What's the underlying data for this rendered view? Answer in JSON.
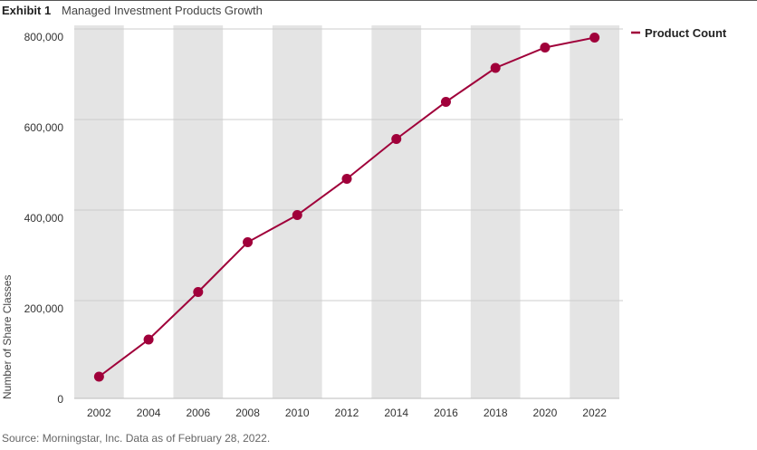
{
  "header": {
    "exhibit": "Exhibit 1",
    "subtitle": "Managed Investment Products Growth"
  },
  "footer": {
    "source": "Source: Morningstar, Inc. Data as of February 28, 2022."
  },
  "colors": {
    "series": "#a0003a",
    "band": "#e4e4e4",
    "grid": "#cccccc"
  },
  "chart_data": {
    "type": "line",
    "x": [
      2002,
      2004,
      2006,
      2008,
      2010,
      2012,
      2014,
      2016,
      2018,
      2020,
      2022
    ],
    "series": [
      {
        "name": "Product Count",
        "values": [
          28000,
          110000,
          215000,
          325000,
          385000,
          465000,
          553000,
          635000,
          710000,
          755000,
          777000
        ]
      }
    ],
    "ylabel": "Number of Share Classes",
    "yticks": [
      0,
      200000,
      400000,
      600000,
      800000
    ],
    "ytick_labels": [
      "0",
      "200,000",
      "400,000",
      "600,000",
      "800,000"
    ],
    "xtick_labels": [
      "2002",
      "2004",
      "2006",
      "2008",
      "2010",
      "2012",
      "2014",
      "2016",
      "2018",
      "2020",
      "2022"
    ],
    "ylim": [
      0,
      800000
    ],
    "grid": true,
    "legend_position": "top-right"
  }
}
